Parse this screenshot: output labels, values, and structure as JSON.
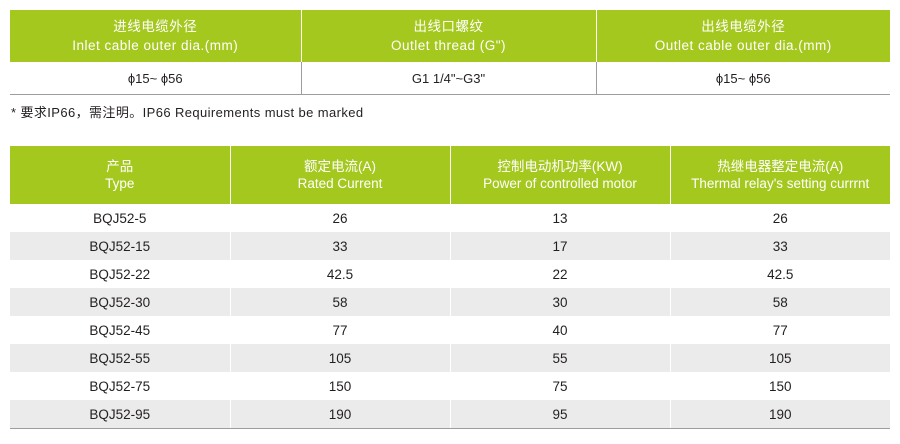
{
  "spec_table": {
    "headers": [
      {
        "zh": "进线电缆外径",
        "en": "Inlet cable outer dia.(mm)"
      },
      {
        "zh": "出线口螺纹",
        "en": "Outlet thread (G\")"
      },
      {
        "zh": "出线电缆外径",
        "en": "Outlet cable outer dia.(mm)"
      }
    ],
    "values": [
      "ϕ15~ ϕ56",
      "G1 1/4\"~G3\"",
      "ϕ15~ ϕ56"
    ]
  },
  "note": "* 要求IP66，需注明。IP66 Requirements must be marked",
  "model_table": {
    "headers": [
      {
        "zh": "产品",
        "en": "Type"
      },
      {
        "zh": "额定电流(A)",
        "en": "Rated Current"
      },
      {
        "zh": "控制电动机功率(KW)",
        "en": "Power of controlled motor"
      },
      {
        "zh": "热继电器整定电流(A)",
        "en": "Thermal relay's setting currrnt"
      }
    ],
    "rows": [
      [
        "BQJ52-5",
        "26",
        "13",
        "26"
      ],
      [
        "BQJ52-15",
        "33",
        "17",
        "33"
      ],
      [
        "BQJ52-22",
        "42.5",
        "22",
        "42.5"
      ],
      [
        "BQJ52-30",
        "58",
        "30",
        "58"
      ],
      [
        "BQJ52-45",
        "77",
        "40",
        "77"
      ],
      [
        "BQJ52-55",
        "105",
        "55",
        "105"
      ],
      [
        "BQJ52-75",
        "150",
        "75",
        "150"
      ],
      [
        "BQJ52-95",
        "190",
        "95",
        "190"
      ]
    ]
  },
  "colors": {
    "header_green": "#a5c81f",
    "stripe_gray": "#ebebeb",
    "text": "#231f20"
  }
}
